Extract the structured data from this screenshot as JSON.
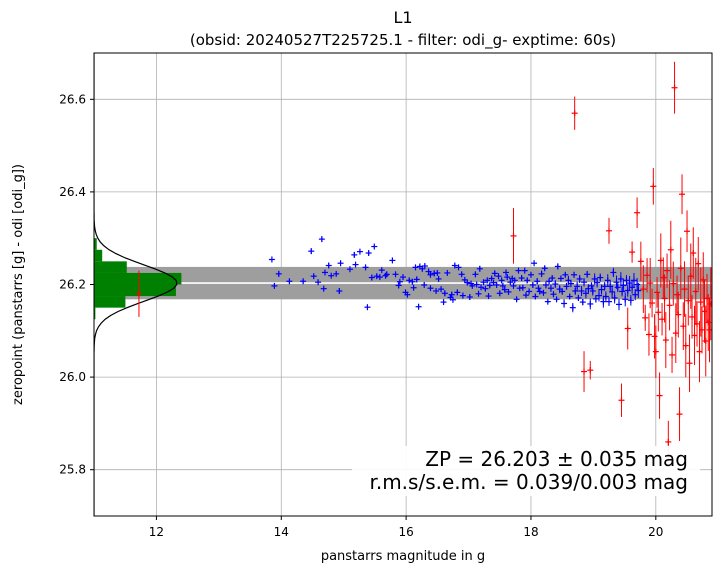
{
  "chart_data": {
    "type": "scatter",
    "title": "L1",
    "subtitle": "(obsid: 20240527T225725.1 - filter: odi_g- exptime: 60s)",
    "xlabel": "panstarrs magnitude in g",
    "ylabel": "zeropoint (panstarrs [g] - odi [odi_g])",
    "xlim": [
      11.0,
      20.9
    ],
    "ylim": [
      25.7,
      26.7
    ],
    "x_ticks": [
      12,
      14,
      16,
      18,
      20
    ],
    "y_ticks": [
      25.8,
      26.0,
      26.2,
      26.4,
      26.6
    ],
    "grid": true,
    "zeropoint": 26.203,
    "zeropoint_band": [
      26.168,
      26.238
    ],
    "annotation_line1": "ZP = 26.203 ± 0.035 mag",
    "annotation_line2": "r.m.s/s.e.m. = 0.039/0.003 mag",
    "colors": {
      "used_stars": "#0000ff",
      "rejected_stars": "#ff0000",
      "histogram": "#008000",
      "zp_band": "#9e9e9e",
      "zp_line": "#ffffff",
      "gaussian": "#000000"
    },
    "series": [
      {
        "points": [
          [
            13.85,
            26.254
          ],
          [
            13.89,
            26.197
          ],
          [
            13.96,
            26.223
          ],
          [
            14.13,
            26.207
          ],
          [
            14.35,
            26.207
          ],
          [
            14.48,
            26.272
          ],
          [
            14.52,
            26.218
          ],
          [
            14.59,
            26.205
          ],
          [
            14.65,
            26.298
          ],
          [
            14.68,
            26.191
          ],
          [
            14.7,
            26.226
          ],
          [
            14.76,
            26.241
          ],
          [
            14.8,
            26.219
          ],
          [
            14.88,
            26.223
          ],
          [
            14.93,
            26.186
          ],
          [
            14.95,
            26.246
          ],
          [
            15.1,
            26.233
          ],
          [
            15.17,
            26.264
          ],
          [
            15.19,
            26.243
          ],
          [
            15.26,
            26.271
          ],
          [
            15.35,
            26.237
          ],
          [
            15.38,
            26.151
          ],
          [
            15.4,
            26.268
          ],
          [
            15.45,
            26.215
          ],
          [
            15.49,
            26.282
          ],
          [
            15.53,
            26.218
          ],
          [
            15.58,
            26.216
          ],
          [
            15.61,
            26.231
          ],
          [
            15.67,
            26.219
          ],
          [
            15.69,
            26.222
          ],
          [
            15.78,
            26.252
          ],
          [
            15.83,
            26.222
          ],
          [
            15.88,
            26.198
          ],
          [
            15.9,
            26.206
          ],
          [
            15.95,
            26.216
          ],
          [
            15.99,
            26.183
          ],
          [
            16.02,
            26.178
          ],
          [
            16.05,
            26.209
          ],
          [
            16.1,
            26.206
          ],
          [
            16.12,
            26.193
          ],
          [
            16.15,
            26.237
          ],
          [
            16.17,
            26.211
          ],
          [
            16.2,
            26.152
          ],
          [
            16.22,
            26.239
          ],
          [
            16.26,
            26.234
          ],
          [
            16.29,
            26.199
          ],
          [
            16.3,
            26.24
          ],
          [
            16.36,
            26.228
          ],
          [
            16.39,
            26.221
          ],
          [
            16.39,
            26.192
          ],
          [
            16.45,
            26.224
          ],
          [
            16.48,
            26.186
          ],
          [
            16.5,
            26.225
          ],
          [
            16.52,
            26.212
          ],
          [
            16.56,
            26.19
          ],
          [
            16.6,
            26.162
          ],
          [
            16.62,
            26.181
          ],
          [
            16.66,
            26.225
          ],
          [
            16.71,
            26.172
          ],
          [
            16.73,
            26.178
          ],
          [
            16.75,
            26.167
          ],
          [
            16.78,
            26.241
          ],
          [
            16.82,
            26.183
          ],
          [
            16.84,
            26.237
          ],
          [
            16.89,
            26.222
          ],
          [
            16.91,
            26.176
          ],
          [
            16.94,
            26.21
          ],
          [
            16.98,
            26.204
          ],
          [
            17.02,
            26.173
          ],
          [
            17.04,
            26.202
          ],
          [
            17.06,
            26.197
          ],
          [
            17.11,
            26.222
          ],
          [
            17.13,
            26.2
          ],
          [
            17.16,
            26.18
          ],
          [
            17.18,
            26.234
          ],
          [
            17.2,
            26.194
          ],
          [
            17.24,
            26.205
          ],
          [
            17.27,
            26.191
          ],
          [
            17.3,
            26.209
          ],
          [
            17.32,
            26.175
          ],
          [
            17.34,
            26.198
          ],
          [
            17.37,
            26.213
          ],
          [
            17.4,
            26.204
          ],
          [
            17.42,
            26.224
          ],
          [
            17.45,
            26.199
          ],
          [
            17.48,
            26.218
          ],
          [
            17.5,
            26.181
          ],
          [
            17.53,
            26.209
          ],
          [
            17.55,
            26.197
          ],
          [
            17.58,
            26.189
          ],
          [
            17.6,
            26.226
          ],
          [
            17.62,
            26.216
          ],
          [
            17.64,
            26.184
          ],
          [
            17.67,
            26.205
          ],
          [
            17.7,
            26.213
          ],
          [
            17.72,
            26.197
          ],
          [
            17.74,
            26.209
          ],
          [
            17.77,
            26.168
          ],
          [
            17.8,
            26.23
          ],
          [
            17.82,
            26.192
          ],
          [
            17.85,
            26.214
          ],
          [
            17.87,
            26.193
          ],
          [
            17.9,
            26.23
          ],
          [
            17.92,
            26.177
          ],
          [
            17.94,
            26.209
          ],
          [
            17.97,
            26.185
          ],
          [
            18.0,
            26.221
          ],
          [
            18.03,
            26.199
          ],
          [
            18.05,
            26.246
          ],
          [
            18.07,
            26.174
          ],
          [
            18.1,
            26.207
          ],
          [
            18.12,
            26.192
          ],
          [
            18.14,
            26.185
          ],
          [
            18.17,
            26.223
          ],
          [
            18.2,
            26.182
          ],
          [
            18.22,
            26.235
          ],
          [
            18.24,
            26.199
          ],
          [
            18.27,
            26.163
          ],
          [
            18.29,
            26.207
          ],
          [
            18.32,
            26.192
          ],
          [
            18.34,
            26.214
          ],
          [
            18.36,
            26.179
          ],
          [
            18.39,
            26.201
          ],
          [
            18.41,
            26.168
          ],
          [
            18.43,
            26.239
          ],
          [
            18.46,
            26.19
          ],
          [
            18.48,
            26.213
          ],
          [
            18.5,
            26.185
          ],
          [
            18.53,
            26.159
          ],
          [
            18.55,
            26.221
          ],
          [
            18.57,
            26.196
          ],
          [
            18.6,
            26.209
          ],
          [
            18.62,
            26.174
          ],
          [
            18.64,
            26.202
          ],
          [
            18.67,
            26.15
          ],
          [
            18.69,
            26.221
          ],
          [
            18.71,
            26.186
          ],
          [
            18.74,
            26.196
          ],
          [
            18.76,
            26.171
          ],
          [
            18.78,
            26.212
          ],
          [
            18.81,
            26.186
          ],
          [
            18.83,
            26.162
          ],
          [
            18.85,
            26.205
          ],
          [
            18.88,
            26.181
          ],
          [
            18.9,
            26.222
          ],
          [
            18.92,
            26.191
          ],
          [
            18.95,
            26.158
          ],
          [
            18.97,
            26.197
          ],
          [
            18.99,
            26.186
          ],
          [
            19.02,
            26.212
          ],
          [
            19.04,
            26.169
          ],
          [
            19.06,
            26.204
          ],
          [
            19.09,
            26.176
          ],
          [
            19.11,
            26.215
          ],
          [
            19.13,
            26.189
          ],
          [
            19.16,
            26.163
          ],
          [
            19.18,
            26.196
          ],
          [
            19.2,
            26.174
          ],
          [
            19.23,
            26.209
          ],
          [
            19.25,
            26.163
          ],
          [
            19.27,
            26.196
          ],
          [
            19.3,
            26.184
          ],
          [
            19.32,
            26.226
          ],
          [
            19.34,
            26.171
          ],
          [
            19.37,
            26.205
          ],
          [
            19.39,
            26.194
          ],
          [
            19.41,
            26.157
          ],
          [
            19.44,
            26.212
          ],
          [
            19.46,
            26.185
          ],
          [
            19.48,
            26.198
          ],
          [
            19.51,
            26.168
          ],
          [
            19.53,
            26.209
          ],
          [
            19.55,
            26.187
          ],
          [
            19.58,
            26.203
          ],
          [
            19.6,
            26.166
          ],
          [
            19.62,
            26.194
          ],
          [
            19.65,
            26.209
          ],
          [
            19.67,
            26.178
          ],
          [
            19.7,
            26.2
          ],
          [
            19.72,
            26.187
          ]
        ]
      },
      {
        "points": [
          [
            11.72,
            26.18
          ],
          [
            17.72,
            26.305
          ],
          [
            18.7,
            26.57
          ],
          [
            18.85,
            26.012
          ],
          [
            18.95,
            26.015
          ],
          [
            19.25,
            26.316
          ],
          [
            19.45,
            25.95
          ],
          [
            19.55,
            26.105
          ],
          [
            19.62,
            26.27
          ],
          [
            19.7,
            26.355
          ],
          [
            19.76,
            26.25
          ],
          [
            19.8,
            26.19
          ],
          [
            19.83,
            26.128
          ],
          [
            19.86,
            26.22
          ],
          [
            19.89,
            26.092
          ],
          [
            19.91,
            26.203
          ],
          [
            19.94,
            26.16
          ],
          [
            19.96,
            26.412
          ],
          [
            19.98,
            26.088
          ],
          [
            20.0,
            26.055
          ],
          [
            20.02,
            26.183
          ],
          [
            20.04,
            26.14
          ],
          [
            20.06,
            25.96
          ],
          [
            20.08,
            26.252
          ],
          [
            20.1,
            26.125
          ],
          [
            20.12,
            26.215
          ],
          [
            20.14,
            26.17
          ],
          [
            20.16,
            26.08
          ],
          [
            20.18,
            26.23
          ],
          [
            20.2,
            25.86
          ],
          [
            20.22,
            26.155
          ],
          [
            20.24,
            26.275
          ],
          [
            20.26,
            26.048
          ],
          [
            20.28,
            26.202
          ],
          [
            20.3,
            26.625
          ],
          [
            20.32,
            26.095
          ],
          [
            20.34,
            26.178
          ],
          [
            20.36,
            26.135
          ],
          [
            20.38,
            25.92
          ],
          [
            20.4,
            26.235
          ],
          [
            20.42,
            26.395
          ],
          [
            20.44,
            26.11
          ],
          [
            20.46,
            26.19
          ],
          [
            20.48,
            26.068
          ],
          [
            20.5,
            26.315
          ],
          [
            20.52,
            26.165
          ],
          [
            20.54,
            26.03
          ],
          [
            20.56,
            26.218
          ],
          [
            20.58,
            26.13
          ],
          [
            20.6,
            26.268
          ],
          [
            20.62,
            26.09
          ],
          [
            20.64,
            26.185
          ],
          [
            20.66,
            26.115
          ],
          [
            20.68,
            26.245
          ],
          [
            20.7,
            26.055
          ],
          [
            20.72,
            26.162
          ],
          [
            20.74,
            26.102
          ],
          [
            20.76,
            26.21
          ],
          [
            20.78,
            26.142
          ],
          [
            20.8,
            26.078
          ],
          [
            20.82,
            26.17
          ],
          [
            20.84,
            26.118
          ],
          [
            20.86,
            26.102
          ],
          [
            20.88,
            26.158
          ]
        ]
      }
    ]
  }
}
